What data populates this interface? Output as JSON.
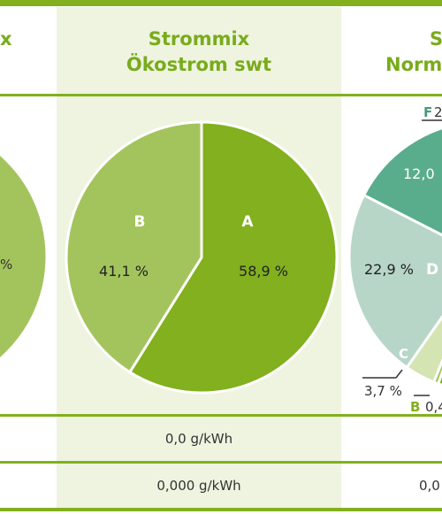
{
  "colors": {
    "accent": "#82b01e",
    "slice_A": "#82b01e",
    "slice_B": "#a3c45c",
    "slice_C": "#d4e4b2",
    "slice_D": "#b7d6c8",
    "slice_E": "#5aad8c",
    "band": "#eef4df"
  },
  "header": {
    "left_partial": "x",
    "center_line1": "Strommix",
    "center_line2": "Ökostrom swt",
    "right_line1": "S",
    "right_line2": "Norm"
  },
  "rows": {
    "co2_center": "0,0 g/kWh",
    "waste_center": "0,000 g/kWh",
    "waste_right_partial": "0,0"
  },
  "chart_data": [
    {
      "type": "pie",
      "title": "Strommix Ökostrom swt",
      "slices": [
        {
          "label": "A",
          "value": 58.9,
          "text": "58,9 %"
        },
        {
          "label": "B",
          "value": 41.1,
          "text": "41,1 %"
        }
      ]
    },
    {
      "type": "pie",
      "title": "",
      "partial": true,
      "slices": [
        {
          "label": "F",
          "text": "2"
        },
        {
          "label": "E",
          "text": "12,0"
        },
        {
          "label": "D",
          "value": 22.9,
          "text": "22,9 %"
        },
        {
          "label": "C",
          "value": 3.7,
          "text": "3,7 %"
        },
        {
          "label": "B",
          "text": "0,4"
        }
      ]
    }
  ]
}
